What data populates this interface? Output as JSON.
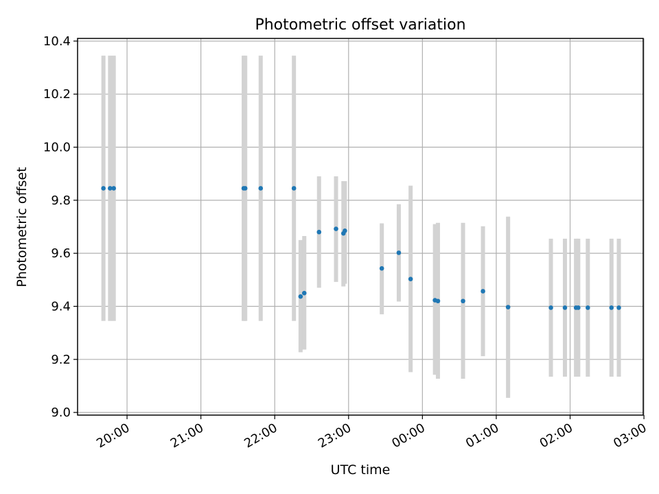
{
  "chart_data": {
    "type": "scatter",
    "title": "Photometric offset variation",
    "xlabel": "UTC time",
    "ylabel": "Photometric offset",
    "x_axis_unit": "hours (UTC, continuing past midnight)",
    "xlim": [
      19.33,
      26.99
    ],
    "ylim": [
      8.99,
      10.41
    ],
    "xticks": [
      20,
      21,
      22,
      23,
      24,
      25,
      26,
      27
    ],
    "xtick_labels": [
      "20:00",
      "21:00",
      "22:00",
      "23:00",
      "00:00",
      "01:00",
      "02:00",
      "03:00"
    ],
    "yticks": [
      9.0,
      9.2,
      9.4,
      9.6,
      9.8,
      10.0,
      10.2,
      10.4
    ],
    "ytick_labels": [
      "9.0",
      "9.2",
      "9.4",
      "9.6",
      "9.8",
      "10.0",
      "10.2",
      "10.4"
    ],
    "grid": true,
    "point_color": "#1f77b4",
    "errorbar_color": "#d3d3d3",
    "points": [
      {
        "x": 19.68,
        "y": 9.845,
        "ylo": 9.345,
        "yhi": 10.345
      },
      {
        "x": 19.77,
        "y": 9.845,
        "ylo": 9.345,
        "yhi": 10.345
      },
      {
        "x": 19.82,
        "y": 9.845,
        "ylo": 9.345,
        "yhi": 10.345
      },
      {
        "x": 21.58,
        "y": 9.845,
        "ylo": 9.345,
        "yhi": 10.345
      },
      {
        "x": 21.6,
        "y": 9.845,
        "ylo": 9.345,
        "yhi": 10.345
      },
      {
        "x": 21.81,
        "y": 9.845,
        "ylo": 9.345,
        "yhi": 10.345
      },
      {
        "x": 22.26,
        "y": 9.845,
        "ylo": 9.345,
        "yhi": 10.345
      },
      {
        "x": 22.35,
        "y": 9.437,
        "ylo": 9.227,
        "yhi": 9.65
      },
      {
        "x": 22.4,
        "y": 9.45,
        "ylo": 9.237,
        "yhi": 9.665
      },
      {
        "x": 22.6,
        "y": 9.68,
        "ylo": 9.47,
        "yhi": 9.89
      },
      {
        "x": 22.83,
        "y": 9.692,
        "ylo": 9.492,
        "yhi": 9.89
      },
      {
        "x": 22.93,
        "y": 9.675,
        "ylo": 9.475,
        "yhi": 9.872
      },
      {
        "x": 22.95,
        "y": 9.685,
        "ylo": 9.485,
        "yhi": 9.872
      },
      {
        "x": 23.45,
        "y": 9.543,
        "ylo": 9.37,
        "yhi": 9.713
      },
      {
        "x": 23.68,
        "y": 9.602,
        "ylo": 9.418,
        "yhi": 9.785
      },
      {
        "x": 23.84,
        "y": 9.503,
        "ylo": 9.152,
        "yhi": 9.855
      },
      {
        "x": 24.17,
        "y": 9.423,
        "ylo": 9.142,
        "yhi": 9.71
      },
      {
        "x": 24.21,
        "y": 9.42,
        "ylo": 9.127,
        "yhi": 9.715
      },
      {
        "x": 24.55,
        "y": 9.42,
        "ylo": 9.127,
        "yhi": 9.715
      },
      {
        "x": 24.82,
        "y": 9.457,
        "ylo": 9.212,
        "yhi": 9.702
      },
      {
        "x": 25.16,
        "y": 9.397,
        "ylo": 9.055,
        "yhi": 9.738
      },
      {
        "x": 25.74,
        "y": 9.395,
        "ylo": 9.135,
        "yhi": 9.655
      },
      {
        "x": 25.93,
        "y": 9.395,
        "ylo": 9.135,
        "yhi": 9.655
      },
      {
        "x": 26.08,
        "y": 9.395,
        "ylo": 9.135,
        "yhi": 9.655
      },
      {
        "x": 26.11,
        "y": 9.395,
        "ylo": 9.135,
        "yhi": 9.655
      },
      {
        "x": 26.24,
        "y": 9.395,
        "ylo": 9.135,
        "yhi": 9.655
      },
      {
        "x": 26.56,
        "y": 9.395,
        "ylo": 9.135,
        "yhi": 9.655
      },
      {
        "x": 26.66,
        "y": 9.395,
        "ylo": 9.135,
        "yhi": 9.655
      }
    ]
  }
}
